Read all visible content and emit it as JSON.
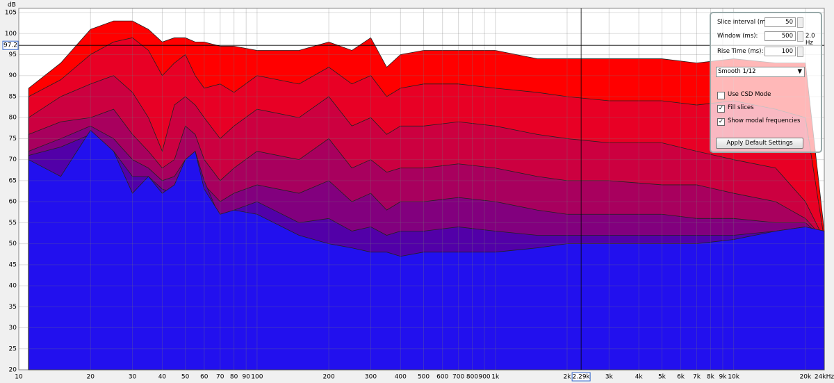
{
  "chart_data": {
    "type": "area",
    "y_label": "dB",
    "x": [
      11,
      15,
      20,
      25,
      30,
      35,
      40,
      45,
      50,
      55,
      60,
      70,
      80,
      100,
      150,
      200,
      250,
      300,
      350,
      400,
      500,
      700,
      1000,
      1500,
      2000,
      3000,
      5000,
      7000,
      10000,
      15000,
      20000,
      24000
    ],
    "series": [
      {
        "color": "#ff0000",
        "values": [
          87,
          93,
          101,
          103,
          103,
          101,
          98,
          99,
          99,
          98,
          98,
          97,
          97,
          96,
          96,
          98,
          96,
          99,
          92,
          95,
          96,
          96,
          96,
          94,
          94,
          94,
          94,
          93,
          94,
          93,
          93,
          53
        ]
      },
      {
        "color": "#e80025",
        "values": [
          85,
          89,
          95,
          98,
          99,
          96,
          90,
          93,
          95,
          90,
          87,
          88,
          86,
          90,
          88,
          92,
          88,
          90,
          85,
          87,
          88,
          88,
          87,
          86,
          85,
          84,
          84,
          83,
          84,
          82,
          80,
          51
        ]
      },
      {
        "color": "#cc0040",
        "values": [
          80,
          85,
          88,
          90,
          86,
          80,
          72,
          83,
          85,
          83,
          80,
          75,
          78,
          82,
          80,
          85,
          78,
          80,
          76,
          78,
          78,
          79,
          78,
          76,
          75,
          74,
          74,
          72,
          70,
          68,
          60,
          51
        ]
      },
      {
        "color": "#a8005e",
        "values": [
          76,
          79,
          80,
          82,
          76,
          72,
          68,
          70,
          78,
          76,
          70,
          65,
          68,
          72,
          70,
          75,
          68,
          70,
          67,
          68,
          68,
          69,
          68,
          66,
          65,
          65,
          64,
          64,
          62,
          60,
          56,
          51
        ]
      },
      {
        "color": "#82007e",
        "values": [
          72,
          75,
          78,
          75,
          70,
          68,
          65,
          66,
          70,
          70,
          64,
          60,
          62,
          64,
          62,
          65,
          60,
          62,
          58,
          60,
          60,
          61,
          60,
          58,
          57,
          57,
          57,
          56,
          56,
          55,
          55,
          51
        ]
      },
      {
        "color": "#5200a8",
        "values": [
          71,
          73,
          76,
          72,
          66,
          66,
          63,
          62,
          68,
          72,
          65,
          56,
          58,
          60,
          55,
          56,
          53,
          54,
          52,
          53,
          53,
          54,
          53,
          52,
          52,
          52,
          52,
          52,
          52,
          53,
          54,
          51
        ]
      },
      {
        "color": "#2210ee",
        "values": [
          70,
          66,
          77,
          72,
          62,
          66,
          62,
          64,
          70,
          72,
          63,
          57,
          58,
          57,
          52,
          50,
          49,
          48,
          48,
          47,
          48,
          48,
          48,
          49,
          50,
          50,
          50,
          50,
          51,
          53,
          54,
          53
        ]
      }
    ],
    "xlim": [
      10,
      24000
    ],
    "log_x": true,
    "xticks": [
      10,
      20,
      30,
      40,
      50,
      60,
      70,
      80,
      90,
      100,
      200,
      300,
      400,
      500,
      600,
      700,
      800,
      900,
      {
        "value": 1000,
        "label": "1k"
      },
      {
        "value": 2000,
        "label": "2k"
      },
      {
        "value": 3000,
        "label": "3k"
      },
      {
        "value": 4000,
        "label": "4k"
      },
      {
        "value": 5000,
        "label": "5k"
      },
      {
        "value": 6000,
        "label": "6k"
      },
      {
        "value": 7000,
        "label": "7k"
      },
      {
        "value": 8000,
        "label": "8k"
      },
      {
        "value": 9000,
        "label": "9k"
      },
      {
        "value": 10000,
        "label": "10k"
      },
      {
        "value": 20000,
        "label": "20k"
      },
      {
        "value": 24000,
        "label": "24kHz"
      }
    ],
    "ylim": [
      20,
      106
    ],
    "yticks": [
      20,
      25,
      30,
      35,
      40,
      45,
      50,
      55,
      60,
      65,
      70,
      75,
      80,
      85,
      90,
      95,
      100,
      105
    ],
    "grid": true,
    "cursor": {
      "x": {
        "value": 2290,
        "label": "2.29k"
      },
      "y": 97.2
    }
  },
  "controls": {
    "slice_interval": {
      "label": "Slice interval (ms):",
      "value": "50"
    },
    "window": {
      "label": "Window (ms):",
      "value": "500",
      "note": "2.0 Hz"
    },
    "rise_time": {
      "label": "Rise Time (ms):",
      "value": "100"
    },
    "smoothing": "Smooth 1/12",
    "checkboxes": [
      {
        "label": "Use CSD Mode",
        "checked": false
      },
      {
        "label": "Fill slices",
        "checked": true
      },
      {
        "label": "Show modal frequencies",
        "checked": true
      }
    ],
    "button": "Apply Default Settings"
  }
}
